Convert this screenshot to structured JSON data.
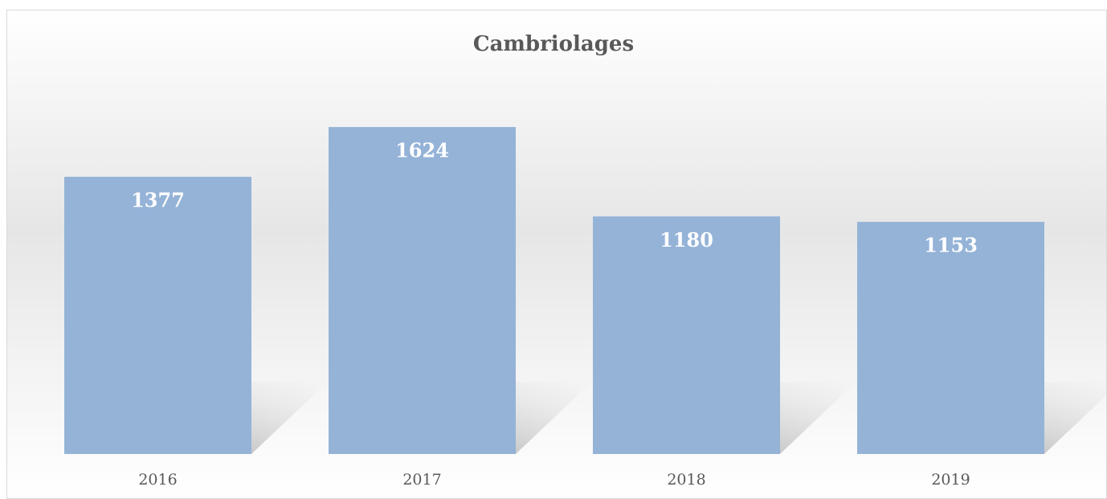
{
  "chart_data": {
    "type": "bar",
    "title": "Cambriolages",
    "categories": [
      "2016",
      "2017",
      "2018",
      "2019"
    ],
    "values": [
      1377,
      1624,
      1180,
      1153
    ],
    "color": "#95b3d7",
    "ylim": [
      0,
      1800
    ]
  }
}
